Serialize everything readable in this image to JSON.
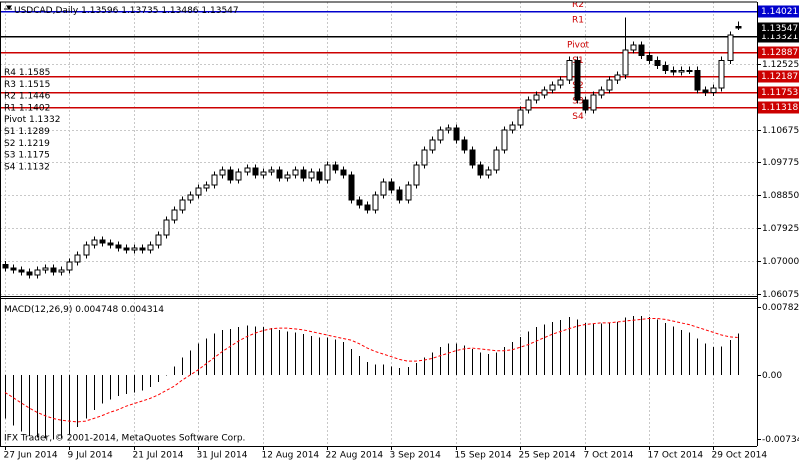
{
  "chart_data": [
    {
      "type": "candlestick",
      "title": "USDCAD,Daily",
      "categories": [
        "27 Jun 2014",
        null,
        null,
        null,
        null,
        null,
        null,
        null,
        "9 Jul 2014",
        null,
        null,
        null,
        null,
        null,
        null,
        null,
        "21 Jul 2014",
        null,
        null,
        null,
        null,
        null,
        null,
        null,
        "31 Jul 2014",
        null,
        null,
        null,
        null,
        null,
        null,
        null,
        "12 Aug 2014",
        null,
        null,
        null,
        null,
        null,
        null,
        null,
        "22 Aug 2014",
        null,
        null,
        null,
        null,
        null,
        null,
        null,
        "3 Sep 2014",
        null,
        null,
        null,
        null,
        null,
        null,
        null,
        "15 Sep 2014",
        null,
        null,
        null,
        null,
        null,
        null,
        null,
        "25 Sep 2014",
        null,
        null,
        null,
        null,
        null,
        null,
        null,
        "7 Oct 2014",
        null,
        null,
        null,
        null,
        null,
        null,
        null,
        "17 Oct 2014",
        null,
        null,
        null,
        null,
        null,
        null,
        null,
        "29 Oct 2014",
        null,
        null,
        null
      ],
      "open": [
        1.069,
        1.068,
        1.0674,
        1.0669,
        1.066,
        1.0674,
        1.068,
        1.0669,
        1.0674,
        1.0697,
        1.0716,
        1.0745,
        1.0759,
        1.075,
        1.0745,
        1.0736,
        1.0731,
        1.0736,
        1.0731,
        1.0745,
        1.0773,
        1.0815,
        1.0843,
        1.0871,
        1.0885,
        1.0905,
        1.0913,
        1.0941,
        1.0955,
        1.0927,
        1.095,
        1.0961,
        1.0941,
        1.095,
        1.0955,
        1.0933,
        1.0941,
        1.0955,
        1.0933,
        1.095,
        1.0927,
        1.0969,
        1.0955,
        1.0941,
        1.0871,
        1.0857,
        1.0843,
        1.0885,
        1.0922,
        1.0899,
        1.0871,
        1.0913,
        1.0969,
        1.1012,
        1.104,
        1.1068,
        1.1073,
        1.104,
        1.1012,
        1.0969,
        1.0941,
        1.0955,
        1.1012,
        1.1068,
        1.1082,
        1.1124,
        1.1152,
        1.1166,
        1.118,
        1.1194,
        1.1208,
        1.1264,
        1.1152,
        1.1124,
        1.1166,
        1.118,
        1.1208,
        1.1222,
        1.1293,
        1.1307,
        1.1278,
        1.1264,
        1.125,
        1.1236,
        1.1231,
        1.1236,
        1.1236,
        1.118,
        1.1174,
        1.1186,
        1.1264,
        1.13596
      ],
      "high": [
        1.07,
        1.069,
        1.0684,
        1.0679,
        1.0684,
        1.069,
        1.069,
        1.0684,
        1.0707,
        1.0726,
        1.0755,
        1.0769,
        1.0769,
        1.076,
        1.0755,
        1.0746,
        1.0746,
        1.0746,
        1.0755,
        1.0783,
        1.0825,
        1.0853,
        1.0881,
        1.0895,
        1.0915,
        1.0923,
        1.0951,
        1.0965,
        1.0965,
        1.096,
        1.0971,
        1.0971,
        1.096,
        1.0965,
        1.0965,
        1.0951,
        1.0965,
        1.0965,
        1.096,
        1.096,
        1.0979,
        1.0979,
        1.0965,
        1.0951,
        1.0881,
        1.0867,
        1.0895,
        1.0932,
        1.0932,
        1.0909,
        1.0923,
        1.0979,
        1.1022,
        1.105,
        1.1078,
        1.1083,
        1.1083,
        1.105,
        1.1022,
        1.0979,
        1.0965,
        1.1022,
        1.1078,
        1.1092,
        1.1134,
        1.1162,
        1.1176,
        1.119,
        1.1204,
        1.1218,
        1.1274,
        1.1274,
        1.1162,
        1.1176,
        1.119,
        1.1218,
        1.1232,
        1.1385,
        1.1317,
        1.1317,
        1.1288,
        1.1274,
        1.126,
        1.1246,
        1.1246,
        1.1246,
        1.1246,
        1.119,
        1.1196,
        1.1274,
        1.1345,
        1.13735
      ],
      "low": [
        1.067,
        1.0664,
        1.0659,
        1.065,
        1.065,
        1.0664,
        1.0659,
        1.0659,
        1.0664,
        1.0687,
        1.0706,
        1.0735,
        1.074,
        1.0735,
        1.0726,
        1.0721,
        1.0721,
        1.0721,
        1.0721,
        1.0735,
        1.0763,
        1.0805,
        1.0833,
        1.0861,
        1.0875,
        1.0895,
        1.0903,
        1.0931,
        1.0917,
        1.0917,
        1.094,
        1.0931,
        1.0931,
        1.094,
        1.0923,
        1.0923,
        1.0931,
        1.0923,
        1.0923,
        1.0917,
        1.0917,
        1.0945,
        1.0931,
        1.0861,
        1.0847,
        1.0833,
        1.0833,
        1.0875,
        1.0889,
        1.0861,
        1.0861,
        1.0903,
        1.0959,
        1.1002,
        1.103,
        1.1058,
        1.103,
        1.1002,
        1.0959,
        1.0931,
        1.0931,
        1.0945,
        1.1002,
        1.1058,
        1.1072,
        1.1114,
        1.1142,
        1.1156,
        1.117,
        1.1184,
        1.1198,
        1.1142,
        1.1114,
        1.1114,
        1.1156,
        1.117,
        1.1198,
        1.1212,
        1.1283,
        1.1268,
        1.1254,
        1.124,
        1.1226,
        1.1221,
        1.1221,
        1.1226,
        1.117,
        1.1164,
        1.1164,
        1.1176,
        1.1254,
        1.13486
      ],
      "close": [
        1.068,
        1.0674,
        1.0669,
        1.066,
        1.0674,
        1.068,
        1.0669,
        1.0674,
        1.0697,
        1.0716,
        1.0745,
        1.0759,
        1.075,
        1.0745,
        1.0736,
        1.0731,
        1.0736,
        1.0731,
        1.0745,
        1.0773,
        1.0815,
        1.0843,
        1.0871,
        1.0885,
        1.0905,
        1.0913,
        1.0941,
        1.0955,
        1.0927,
        1.095,
        1.0961,
        1.0941,
        1.095,
        1.0955,
        1.0933,
        1.0941,
        1.0955,
        1.0933,
        1.095,
        1.0927,
        1.0969,
        1.0955,
        1.0941,
        1.0871,
        1.0857,
        1.0843,
        1.0885,
        1.0922,
        1.0899,
        1.0871,
        1.0913,
        1.0969,
        1.1012,
        1.104,
        1.1068,
        1.1073,
        1.104,
        1.1012,
        1.0969,
        1.0941,
        1.0955,
        1.1012,
        1.1068,
        1.1082,
        1.1124,
        1.1152,
        1.1166,
        1.118,
        1.1194,
        1.1208,
        1.1264,
        1.1152,
        1.1124,
        1.1166,
        1.118,
        1.1208,
        1.1222,
        1.1293,
        1.1307,
        1.1278,
        1.1264,
        1.125,
        1.1236,
        1.1231,
        1.1236,
        1.1236,
        1.118,
        1.1174,
        1.1186,
        1.1264,
        1.1335,
        1.13547
      ],
      "ylim": [
        1.0601,
        1.1428
      ],
      "yticks": [
        1.06075,
        {
          "value": 1.07,
          "label": "1.07000"
        },
        1.07925,
        {
          "value": 1.0885,
          "label": "1.08850"
        },
        1.09775,
        1.10675,
        1.12525
      ],
      "grid": true,
      "levels": [
        {
          "name": "R4",
          "value": 1.1585
        },
        {
          "name": "R3",
          "value": 1.1515
        },
        {
          "name": "R2",
          "value": 1.1446
        },
        {
          "name": "R1",
          "value": 1.1402,
          "line": 1.14021,
          "color": "#0000cc"
        },
        {
          "name": "Pivot",
          "value": 1.1332,
          "line": 1.13321,
          "color": "#000000"
        },
        {
          "name": "S1",
          "value": 1.1289,
          "line": 1.12887,
          "color": "#cc0000"
        },
        {
          "name": "S2",
          "value": 1.1219,
          "line": 1.12187,
          "color": "#cc0000"
        },
        {
          "name": "S3",
          "value": 1.1175,
          "line": 1.11753,
          "color": "#cc0000"
        },
        {
          "name": "S4",
          "value": 1.1132,
          "line": 1.11318,
          "color": "#cc0000"
        }
      ],
      "level_label_color": "#cc0000"
    },
    {
      "type": "macd",
      "title": "MACD(12,26,9)",
      "macd": {
        "color": "#000000",
        "values": [
          -0.005,
          -0.0058,
          -0.0065,
          -0.007,
          -0.0072,
          -0.0073,
          -0.0074,
          -0.0073,
          -0.0068,
          -0.006,
          -0.005,
          -0.004,
          -0.0033,
          -0.0028,
          -0.0024,
          -0.0022,
          -0.002,
          -0.0018,
          -0.0014,
          -0.0008,
          0.0,
          0.001,
          0.002,
          0.0028,
          0.0036,
          0.0042,
          0.0048,
          0.0052,
          0.0053,
          0.0055,
          0.0057,
          0.0056,
          0.0055,
          0.0054,
          0.0052,
          0.005,
          0.0049,
          0.0047,
          0.0045,
          0.0043,
          0.0043,
          0.0041,
          0.0038,
          0.003,
          0.0022,
          0.0015,
          0.0012,
          0.0012,
          0.001,
          0.0008,
          0.0009,
          0.0014,
          0.002,
          0.0026,
          0.0032,
          0.0036,
          0.0036,
          0.0034,
          0.003,
          0.0026,
          0.0024,
          0.0026,
          0.0032,
          0.0038,
          0.0044,
          0.005,
          0.0055,
          0.0058,
          0.0061,
          0.0063,
          0.0067,
          0.0064,
          0.006,
          0.0059,
          0.0059,
          0.006,
          0.0061,
          0.0066,
          0.0068,
          0.0068,
          0.0067,
          0.0064,
          0.006,
          0.0056,
          0.0052,
          0.0049,
          0.0042,
          0.0036,
          0.0032,
          0.0033,
          0.004,
          0.004748
        ]
      },
      "signal": {
        "color": "#ff0000",
        "values": [
          -0.002,
          -0.0026,
          -0.0032,
          -0.0038,
          -0.0043,
          -0.0047,
          -0.005,
          -0.0052,
          -0.0053,
          -0.0054,
          -0.0053,
          -0.005,
          -0.0047,
          -0.0043,
          -0.004,
          -0.0036,
          -0.0033,
          -0.003,
          -0.0027,
          -0.0023,
          -0.0018,
          -0.0013,
          -0.0006,
          0.0,
          0.0006,
          0.0013,
          0.002,
          0.0027,
          0.0033,
          0.0039,
          0.0044,
          0.0048,
          0.0051,
          0.0053,
          0.0054,
          0.0054,
          0.0053,
          0.0052,
          0.005,
          0.0048,
          0.0046,
          0.0044,
          0.0042,
          0.004,
          0.0036,
          0.0031,
          0.0027,
          0.0024,
          0.0021,
          0.0018,
          0.0016,
          0.0016,
          0.0017,
          0.0019,
          0.0022,
          0.0025,
          0.0028,
          0.003,
          0.0031,
          0.003,
          0.0029,
          0.0028,
          0.0028,
          0.0029,
          0.0032,
          0.0035,
          0.0039,
          0.0043,
          0.0047,
          0.005,
          0.0053,
          0.0056,
          0.0058,
          0.0059,
          0.006,
          0.006,
          0.0061,
          0.0062,
          0.0063,
          0.0064,
          0.0065,
          0.0065,
          0.0064,
          0.0062,
          0.006,
          0.0058,
          0.0055,
          0.0052,
          0.0049,
          0.0046,
          0.0044,
          0.004314
        ]
      },
      "ylim": [
        -0.00817,
        0.00886
      ],
      "yticks": [
        0.007825,
        {
          "value": 0,
          "label": "0.00"
        },
        -0.007344
      ],
      "annotation": "IFX Trader, © 2001-2014, MetaQuotes Software Corp."
    }
  ]
}
